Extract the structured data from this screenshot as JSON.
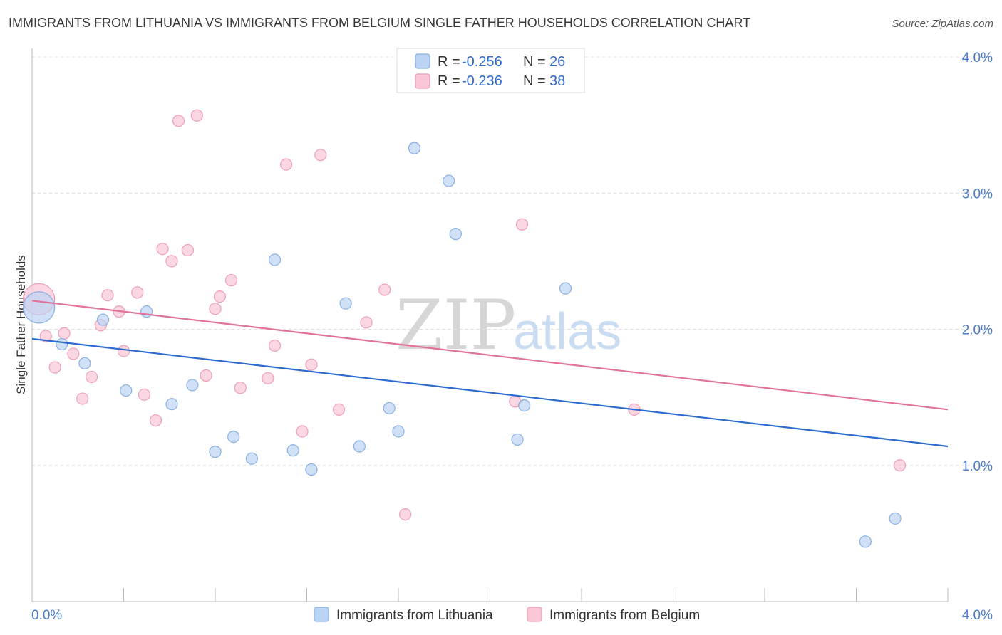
{
  "title": "IMMIGRANTS FROM LITHUANIA VS IMMIGRANTS FROM BELGIUM SINGLE FATHER HOUSEHOLDS CORRELATION CHART",
  "source": "Source: ZipAtlas.com",
  "watermark": {
    "zip": "ZIP",
    "atlas": "atlas"
  },
  "legend": {
    "r_label": "R =",
    "n_label": "N =",
    "entries": [
      {
        "r": "-0.256",
        "n": "26"
      },
      {
        "r": "-0.236",
        "n": "38"
      }
    ]
  },
  "colors": {
    "lithuania_fill": "#bcd4f3",
    "lithuania_stroke": "#8ab0e3",
    "lithuania_line": "#2e6bd0",
    "belgium_fill": "#f8c6d5",
    "belgium_stroke": "#ee9fb8",
    "belgium_line": "#e0729b",
    "grid": "#dddddd",
    "tick_text": "#4a7cc9"
  },
  "chart_data": {
    "type": "scatter",
    "title": "IMMIGRANTS FROM LITHUANIA VS IMMIGRANTS FROM BELGIUM SINGLE FATHER HOUSEHOLDS CORRELATION CHART",
    "xlabel": "",
    "ylabel": "Single Father Households",
    "xlim": [
      0,
      4.0
    ],
    "ylim": [
      0,
      4.0
    ],
    "x_tick_labels": [
      "0.0%",
      "4.0%"
    ],
    "y_ticks": [
      {
        "value": 1.0,
        "label": "1.0%"
      },
      {
        "value": 2.0,
        "label": "2.0%"
      },
      {
        "value": 3.0,
        "label": "3.0%"
      },
      {
        "value": 4.0,
        "label": "4.0%"
      }
    ],
    "grid": true,
    "series": [
      {
        "name": "Immigrants from Lithuania",
        "trend": {
          "x": [
            0.0,
            4.0
          ],
          "y": [
            1.93,
            1.14
          ]
        },
        "points": [
          {
            "x": 0.03,
            "y": 2.16,
            "big": true
          },
          {
            "x": 0.13,
            "y": 1.89
          },
          {
            "x": 0.23,
            "y": 1.75
          },
          {
            "x": 0.31,
            "y": 2.07
          },
          {
            "x": 0.41,
            "y": 1.55
          },
          {
            "x": 0.5,
            "y": 2.13
          },
          {
            "x": 0.61,
            "y": 1.45
          },
          {
            "x": 0.7,
            "y": 1.59
          },
          {
            "x": 0.8,
            "y": 1.1
          },
          {
            "x": 0.88,
            "y": 1.21
          },
          {
            "x": 0.96,
            "y": 1.05
          },
          {
            "x": 1.06,
            "y": 2.51
          },
          {
            "x": 1.14,
            "y": 1.11
          },
          {
            "x": 1.22,
            "y": 0.97
          },
          {
            "x": 1.37,
            "y": 2.19
          },
          {
            "x": 1.43,
            "y": 1.14
          },
          {
            "x": 1.56,
            "y": 1.42
          },
          {
            "x": 1.6,
            "y": 1.25
          },
          {
            "x": 1.67,
            "y": 3.33
          },
          {
            "x": 1.82,
            "y": 3.09
          },
          {
            "x": 1.85,
            "y": 2.7
          },
          {
            "x": 2.12,
            "y": 1.19
          },
          {
            "x": 2.15,
            "y": 1.44
          },
          {
            "x": 2.33,
            "y": 2.3
          },
          {
            "x": 3.64,
            "y": 0.44
          },
          {
            "x": 3.77,
            "y": 0.61
          }
        ]
      },
      {
        "name": "Immigrants from Belgium",
        "trend": {
          "x": [
            0.0,
            4.0
          ],
          "y": [
            2.21,
            1.41
          ]
        },
        "points": [
          {
            "x": 0.03,
            "y": 2.22,
            "big": true
          },
          {
            "x": 0.06,
            "y": 1.95
          },
          {
            "x": 0.1,
            "y": 1.72
          },
          {
            "x": 0.14,
            "y": 1.97
          },
          {
            "x": 0.18,
            "y": 1.82
          },
          {
            "x": 0.22,
            "y": 1.49
          },
          {
            "x": 0.26,
            "y": 1.65
          },
          {
            "x": 0.3,
            "y": 2.03
          },
          {
            "x": 0.33,
            "y": 2.25
          },
          {
            "x": 0.38,
            "y": 2.13
          },
          {
            "x": 0.4,
            "y": 1.84
          },
          {
            "x": 0.46,
            "y": 2.27
          },
          {
            "x": 0.49,
            "y": 1.52
          },
          {
            "x": 0.54,
            "y": 1.33
          },
          {
            "x": 0.57,
            "y": 2.59
          },
          {
            "x": 0.61,
            "y": 2.5
          },
          {
            "x": 0.64,
            "y": 3.53
          },
          {
            "x": 0.68,
            "y": 2.58
          },
          {
            "x": 0.72,
            "y": 3.57
          },
          {
            "x": 0.76,
            "y": 1.66
          },
          {
            "x": 0.8,
            "y": 2.15
          },
          {
            "x": 0.82,
            "y": 2.24
          },
          {
            "x": 0.87,
            "y": 2.36
          },
          {
            "x": 0.91,
            "y": 1.57
          },
          {
            "x": 1.03,
            "y": 1.64
          },
          {
            "x": 1.06,
            "y": 1.88
          },
          {
            "x": 1.11,
            "y": 3.21
          },
          {
            "x": 1.18,
            "y": 1.25
          },
          {
            "x": 1.22,
            "y": 1.74
          },
          {
            "x": 1.26,
            "y": 3.28
          },
          {
            "x": 1.34,
            "y": 1.41
          },
          {
            "x": 1.46,
            "y": 2.05
          },
          {
            "x": 1.54,
            "y": 2.29
          },
          {
            "x": 1.63,
            "y": 0.64
          },
          {
            "x": 2.11,
            "y": 1.47
          },
          {
            "x": 2.14,
            "y": 2.77
          },
          {
            "x": 2.63,
            "y": 1.41
          },
          {
            "x": 3.79,
            "y": 1.0
          }
        ]
      }
    ]
  }
}
